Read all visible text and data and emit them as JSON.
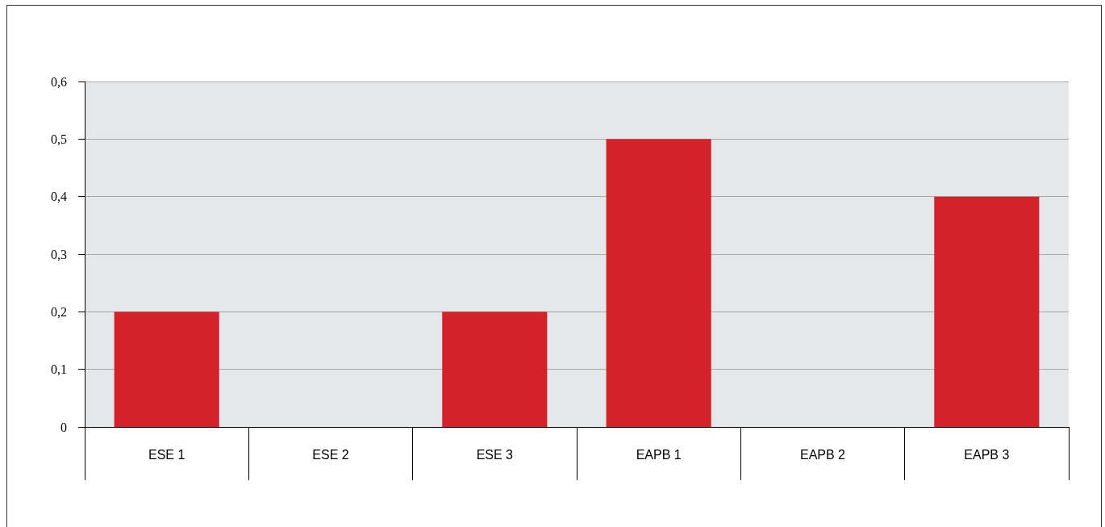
{
  "chart_data": {
    "type": "bar",
    "categories": [
      "ESE 1",
      "ESE 2",
      "ESE 3",
      "EAPB 1",
      "EAPB 2",
      "EAPB 3"
    ],
    "values": [
      0.2,
      0,
      0.2,
      0.5,
      0,
      0.4
    ],
    "color": "#d2232a",
    "ylim": [
      0,
      0.6
    ],
    "yticks": [
      0,
      {
        "value": 0.1,
        "label": "0,1"
      },
      {
        "value": 0.2,
        "label": "0,2"
      },
      {
        "value": 0.3,
        "label": "0,3"
      },
      {
        "value": 0.4,
        "label": "0,4"
      },
      {
        "value": 0.5,
        "label": "0,5"
      },
      {
        "value": 0.6,
        "label": "0,6"
      }
    ],
    "grid": "y"
  }
}
